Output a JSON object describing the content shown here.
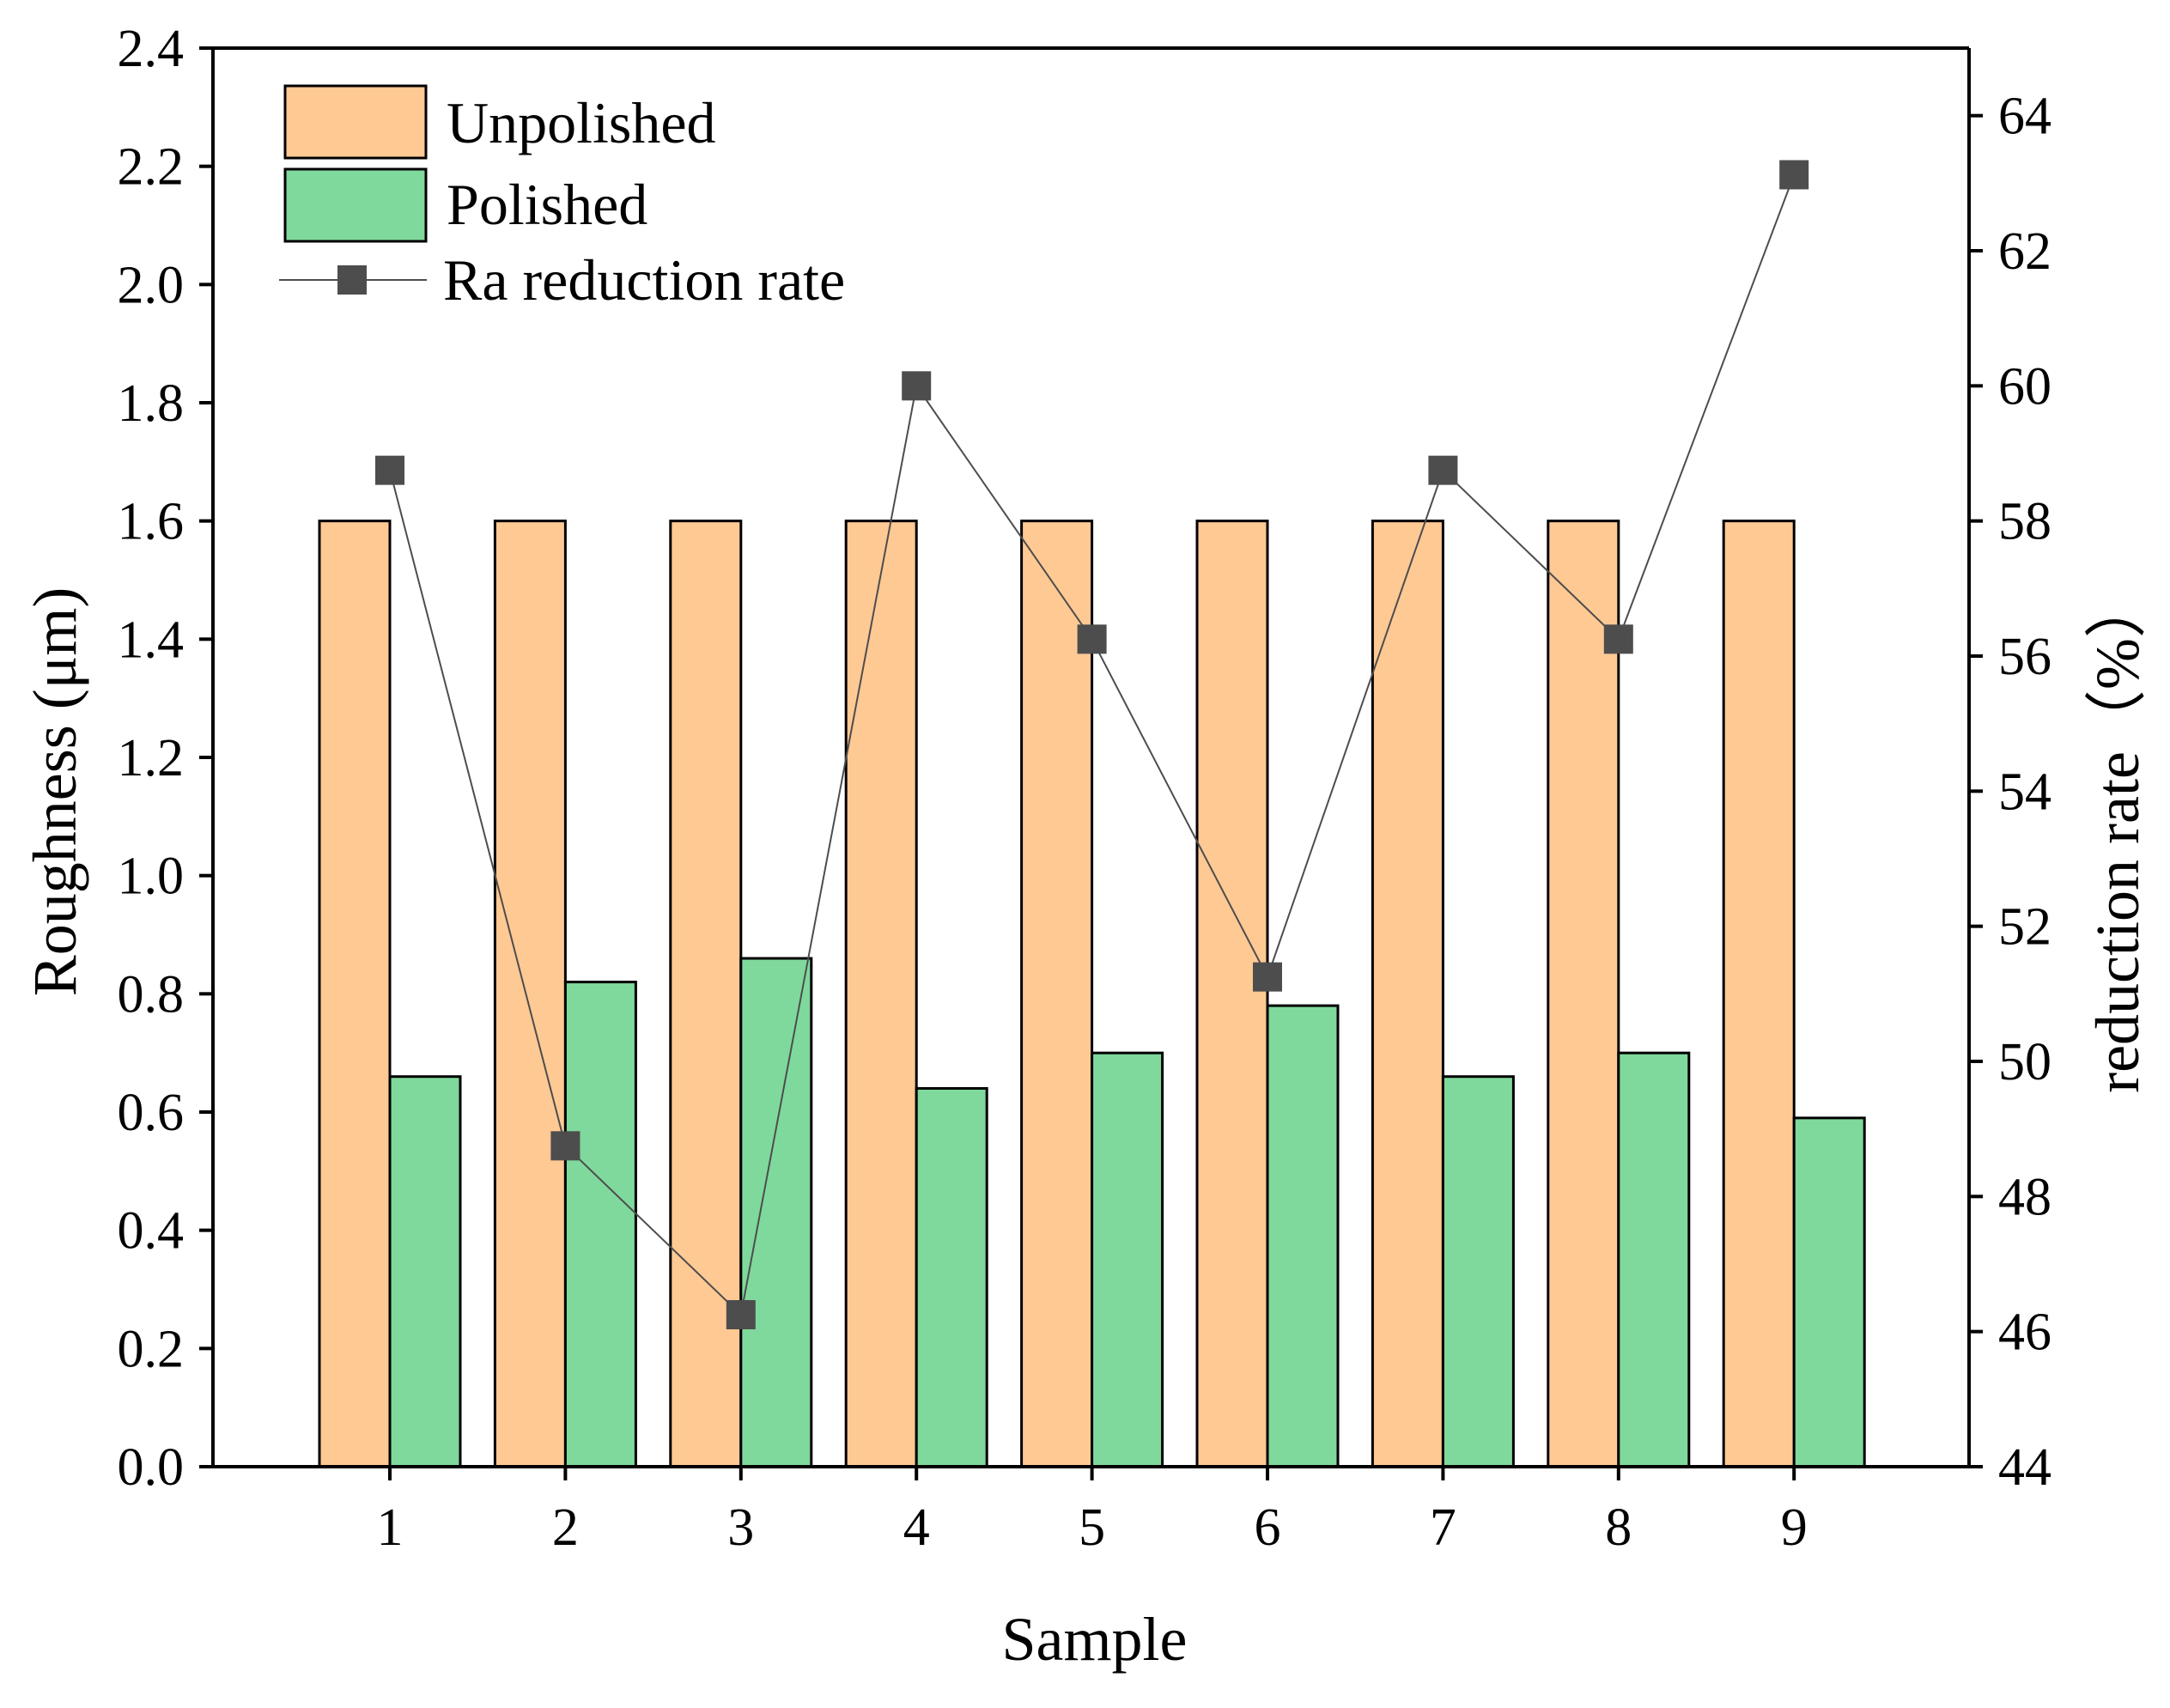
{
  "chart_data": {
    "type": "bar",
    "title": "",
    "xlabel": "Sample",
    "ylabel": "Roughness (μm)",
    "y2label": "reduction rate（%）",
    "categories": [
      "1",
      "2",
      "3",
      "4",
      "5",
      "6",
      "7",
      "8",
      "9"
    ],
    "ylim": [
      0,
      2.4
    ],
    "yticks": [
      "0.0",
      "0.2",
      "0.4",
      "0.6",
      "0.8",
      "1.0",
      "1.2",
      "1.4",
      "1.6",
      "1.8",
      "2.0",
      "2.2",
      "2.4"
    ],
    "y2lim": [
      44,
      65
    ],
    "y2ticks": [
      "44",
      "46",
      "48",
      "50",
      "52",
      "54",
      "56",
      "58",
      "60",
      "62",
      "64"
    ],
    "series": [
      {
        "name": "Unpolished",
        "type": "bar",
        "axis": "left",
        "color": "#FFC994",
        "values": [
          1.6,
          1.6,
          1.6,
          1.6,
          1.6,
          1.6,
          1.6,
          1.6,
          1.6
        ]
      },
      {
        "name": "Polished",
        "type": "bar",
        "axis": "left",
        "color": "#7FD99C",
        "values": [
          0.66,
          0.82,
          0.86,
          0.64,
          0.7,
          0.78,
          0.66,
          0.7,
          0.59
        ]
      },
      {
        "name": "Ra reduction rate",
        "type": "line",
        "axis": "right",
        "color": "#4D4D4D",
        "values": [
          58.75,
          48.75,
          46.25,
          60.0,
          56.25,
          51.25,
          58.75,
          56.25,
          63.125
        ]
      }
    ],
    "legend_position": "top-left",
    "grid": false
  }
}
